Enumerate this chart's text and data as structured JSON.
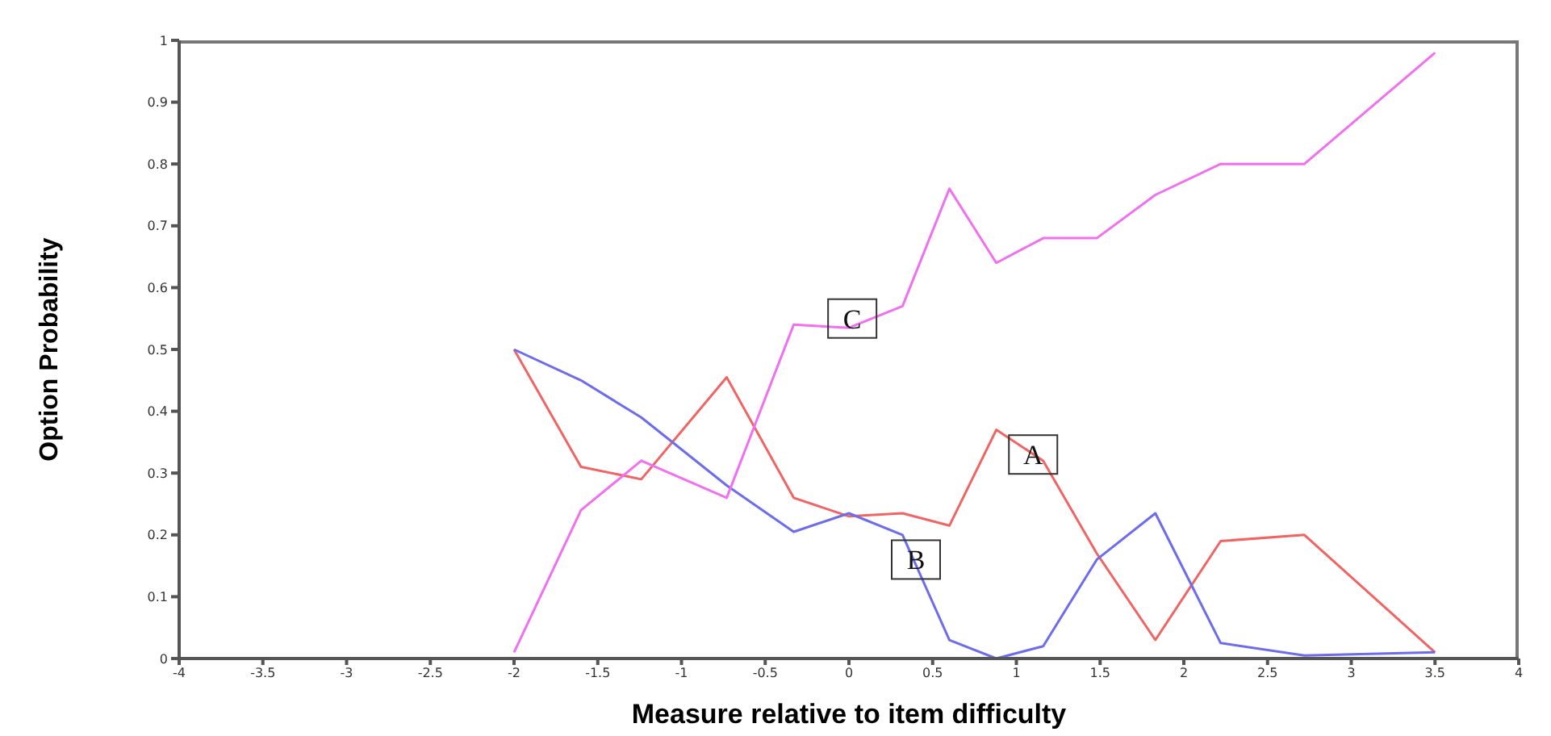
{
  "chart_data": {
    "type": "line",
    "xlabel": "Measure relative to item difficulty",
    "ylabel": "Option Probability",
    "x": [
      -2,
      -1.6,
      -1.24,
      -0.73,
      -0.33,
      0,
      0.32,
      0.6,
      0.88,
      1.16,
      1.48,
      1.83,
      2.22,
      2.72,
      3.5
    ],
    "series": [
      {
        "color": "#f06464",
        "values": [
          0.5,
          0.31,
          0.29,
          0.455,
          0.26,
          0.23,
          0.235,
          0.215,
          0.37,
          0.32,
          0.17,
          0.03,
          0.19,
          0.2,
          0.01
        ]
      },
      {
        "color": "#6c6cec",
        "values": [
          0.5,
          0.45,
          0.39,
          0.28,
          0.205,
          0.235,
          0.2,
          0.03,
          0,
          0.02,
          0.16,
          0.235,
          0.025,
          0.005,
          0.01
        ]
      },
      {
        "color": "#f070f0",
        "values": [
          0.01,
          0.24,
          0.32,
          0.26,
          0.54,
          0.535,
          0.57,
          0.76,
          0.64,
          0.68,
          0.68,
          0.75,
          0.8,
          0.8,
          0.98
        ]
      }
    ],
    "annotations": [
      {
        "text": "A",
        "x": 1.1,
        "y": 0.33
      },
      {
        "text": "B",
        "x": 0.4,
        "y": 0.16
      },
      {
        "text": "C",
        "x": 0.02,
        "y": 0.55
      }
    ],
    "xlim": [
      -4,
      4
    ],
    "xticks": [
      -4,
      -3.5,
      -3,
      -2.5,
      -2,
      -1.5,
      -1,
      -0.5,
      0,
      0.5,
      1,
      1.5,
      2,
      2.5,
      3,
      3.5,
      4
    ],
    "ylim": [
      0,
      1
    ],
    "yticks": [
      0,
      0.1,
      0.2,
      0.3,
      0.4,
      0.5,
      0.6,
      0.7,
      0.8,
      0.9,
      1
    ],
    "grid": false,
    "legend": false,
    "marker": "none",
    "line_style": "solid"
  }
}
